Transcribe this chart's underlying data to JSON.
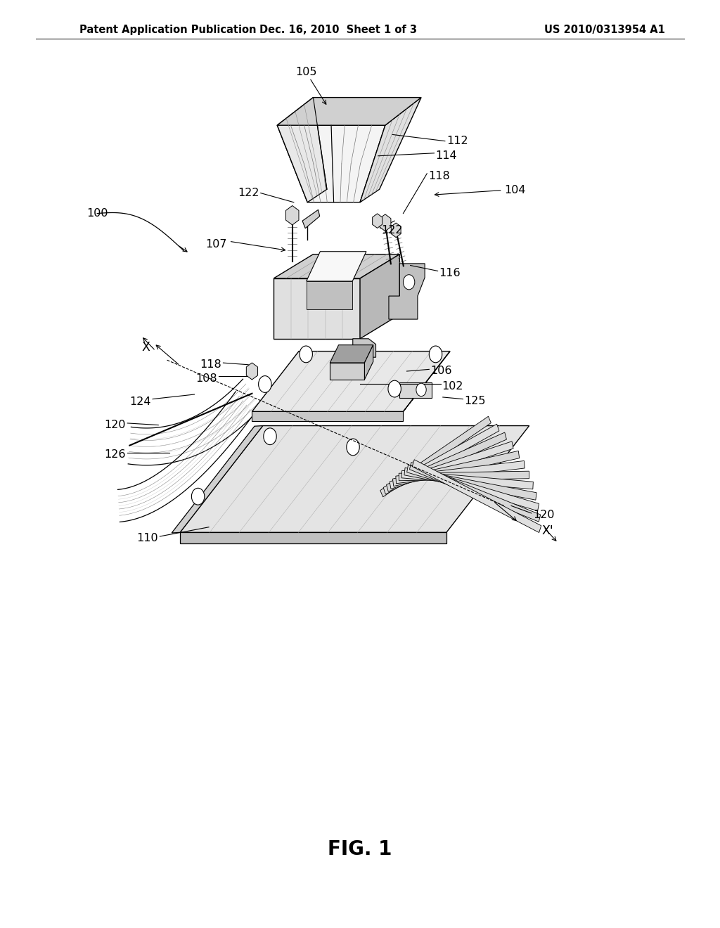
{
  "background_color": "#ffffff",
  "header_left": "Patent Application Publication",
  "header_center": "Dec. 16, 2010  Sheet 1 of 3",
  "header_right": "US 2010/0313954 A1",
  "figure_label": "FIG. 1",
  "header_fontsize": 10.5,
  "label_fontsize": 11.5,
  "fig_label_fontsize": 20,
  "line_color": "#000000",
  "bg": "#ffffff",
  "face_light": "#f0f0f0",
  "face_mid": "#d8d8d8",
  "face_dark": "#b0b0b0",
  "face_darker": "#909090"
}
